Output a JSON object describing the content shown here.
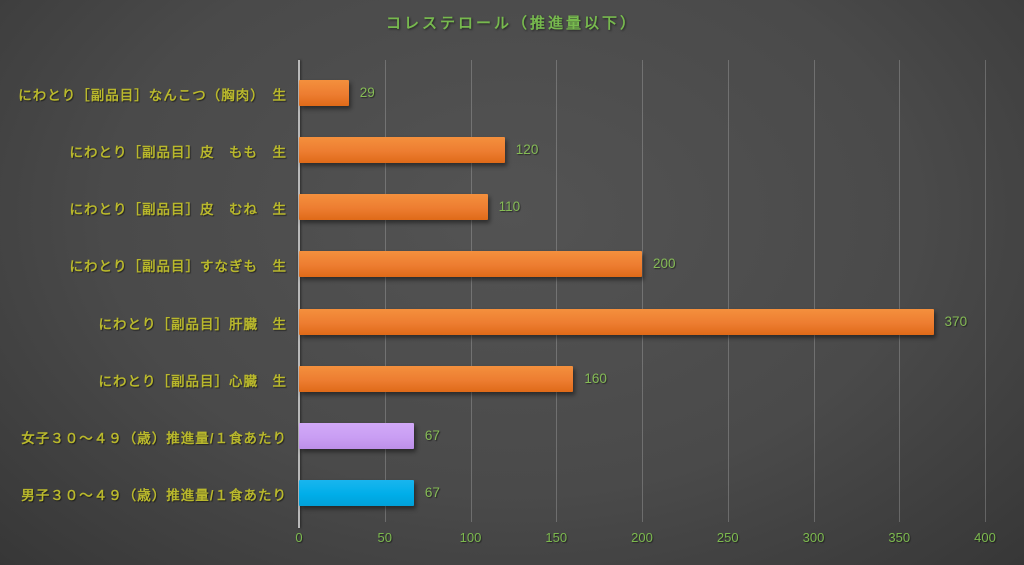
{
  "title": "コレステロール（推進量以下）",
  "chart_data": {
    "type": "bar",
    "orientation": "horizontal",
    "title": "コレステロール（推進量以下）",
    "categories": [
      "にわとり［副品目］なんこつ（胸肉）　生",
      "にわとり［副品目］皮　もも　生",
      "にわとり［副品目］皮　むね　生",
      "にわとり［副品目］すなぎも　生",
      "にわとり［副品目］肝臓　生",
      "にわとり［副品目］心臓　生",
      "女子３０～４９（歳）推進量/１食あたり",
      "男子３０～４９（歳）推進量/１食あたり"
    ],
    "values": [
      29,
      120,
      110,
      200,
      370,
      160,
      67,
      67
    ],
    "data_labels": [
      "29",
      "120",
      "110",
      "200",
      "370",
      "160",
      "67",
      "67"
    ],
    "bar_colors": [
      "orange",
      "orange",
      "orange",
      "orange",
      "orange",
      "orange",
      "purple",
      "blue"
    ],
    "x_ticks": [
      0,
      50,
      100,
      150,
      200,
      250,
      300,
      350,
      400
    ],
    "xlim": [
      0,
      400
    ],
    "grid": true,
    "legend": "none"
  },
  "colors": {
    "bar_orange": "#ED7D31",
    "bar_purple": "#C99EF3",
    "bar_blue": "#00AEE9",
    "title_text": "#77B94E",
    "category_text": "#B9B82C",
    "value_text": "#85BB55",
    "tick_text": "#7CB94E",
    "background_center": "#4F4F4F",
    "background_edge": "#272727",
    "gridline": "#8C8C8C",
    "axis_line": "#B9B9B9"
  }
}
